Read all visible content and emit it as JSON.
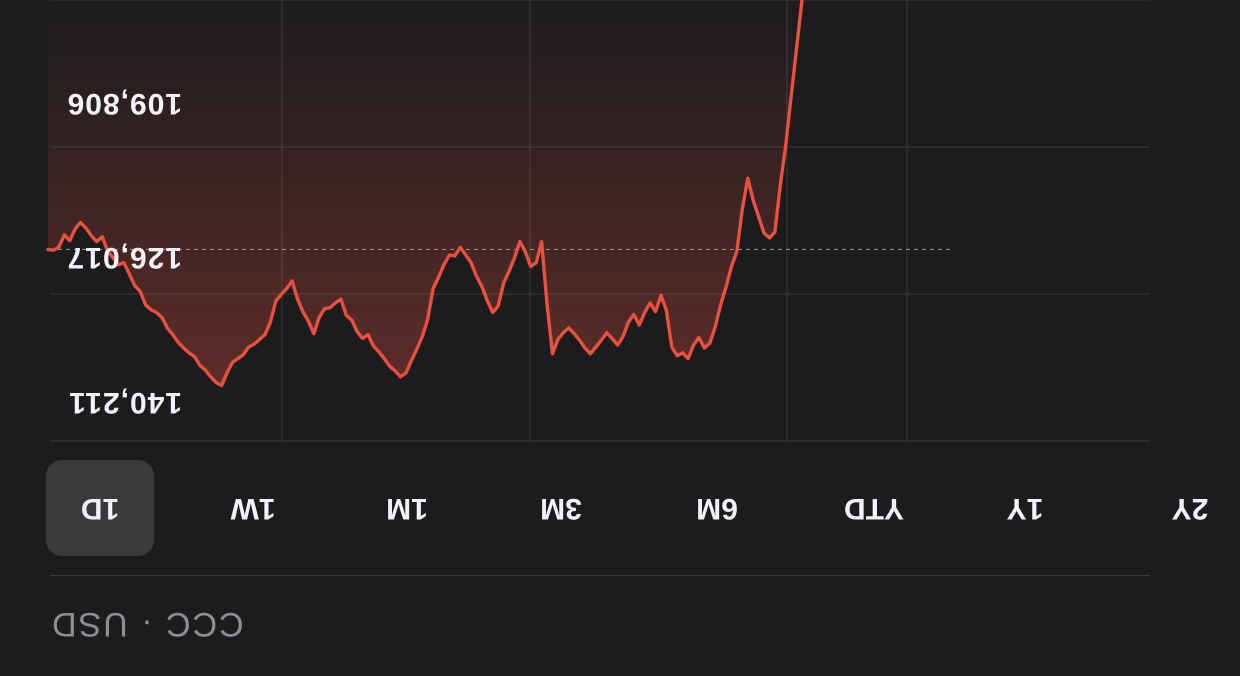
{
  "chart_data": {
    "type": "line",
    "y_ticks": [
      "140,211",
      "126,017",
      "109,806"
    ],
    "y_tick_values": [
      140211,
      126017,
      109806
    ],
    "baseline_label": "reference line",
    "color": "#e8503f",
    "series": [
      {
        "name": "price",
        "values": [
          126020,
          126100,
          125800,
          124500,
          125100,
          123900,
          123200,
          123800,
          124600,
          125200,
          124700,
          126200,
          126900,
          127600,
          127400,
          128600,
          129800,
          130400,
          131800,
          132300,
          132600,
          133100,
          134200,
          134900,
          135700,
          136300,
          136800,
          137200,
          138100,
          138600,
          139300,
          139900,
          140210,
          138900,
          137800,
          137400,
          137000,
          136200,
          135900,
          135400,
          134900,
          133600,
          131400,
          130700,
          130100,
          129300,
          131200,
          132500,
          133500,
          134800,
          133100,
          132200,
          132100,
          131600,
          131200,
          132900,
          133400,
          134600,
          135300,
          134900,
          136100,
          136700,
          137400,
          138200,
          138700,
          139300,
          138900,
          137600,
          136400,
          135100,
          133300,
          130100,
          128900,
          127600,
          126600,
          126700,
          125800,
          126600,
          127400,
          128800,
          129900,
          131400,
          132600,
          131900,
          129500,
          128300,
          126900,
          125200,
          126300,
          127800,
          127400,
          125200,
          131800,
          136900,
          135400,
          134700,
          134200,
          134800,
          135500,
          136300,
          136900,
          136200,
          135500,
          134700,
          135300,
          136000,
          135100,
          133600,
          132800,
          133900,
          132600,
          131600,
          132500,
          130800,
          132400,
          136200,
          137100,
          136800,
          137400,
          136000,
          135200,
          136300,
          135800,
          134100,
          131800,
          129900,
          127800,
          126200,
          121800,
          118600,
          120900,
          122600,
          124300,
          124800,
          124200,
          119300,
          115200,
          110000,
          105000,
          100000
        ]
      }
    ],
    "ylim": [
      100000,
      146000
    ]
  },
  "range_tabs": [
    "1D",
    "1W",
    "1M",
    "3M",
    "6M",
    "YTD",
    "1Y",
    "2Y"
  ],
  "active_tab": "1D",
  "symbol_line": "CCC · USD"
}
